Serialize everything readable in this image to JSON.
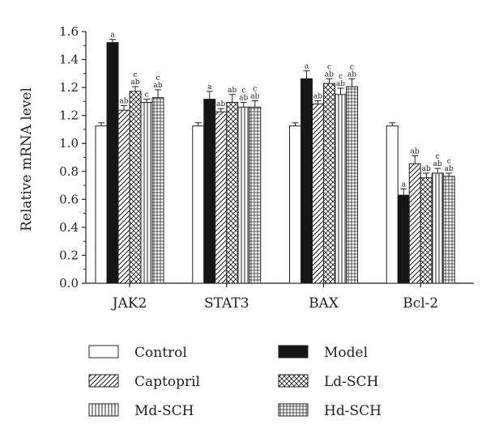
{
  "chart_data": {
    "type": "bar",
    "ylabel": "Relative mRNA level",
    "yticks": [
      "0.0",
      "0.2",
      "0.4",
      "0.6",
      "0.8",
      "1.0",
      "1.2",
      "1.2",
      "1.4",
      "1.6"
    ],
    "categories": [
      "JAK2",
      "STAT3",
      "BAX",
      "Bcl-2"
    ],
    "series": [
      {
        "name": "Control",
        "pattern": "white",
        "values": [
          1.0,
          1.0,
          1.0,
          1.0
        ],
        "errors": [
          0.02,
          0.02,
          0.02,
          0.02
        ],
        "labels": [
          "",
          "",
          "",
          ""
        ]
      },
      {
        "name": "Model",
        "pattern": "black",
        "values": [
          1.53,
          1.17,
          1.3,
          0.56
        ],
        "errors": [
          0.02,
          0.05,
          0.05,
          0.04
        ],
        "labels": [
          "a",
          "a",
          "a",
          "a"
        ]
      },
      {
        "name": "Captopril",
        "pattern": "diagonal",
        "values": [
          1.1,
          1.09,
          1.14,
          0.76
        ],
        "errors": [
          0.03,
          0.02,
          0.02,
          0.05
        ],
        "labels": [
          "ab",
          "ab",
          "ab",
          "ab"
        ]
      },
      {
        "name": "Ld-SCH",
        "pattern": "crosshatch",
        "values": [
          1.22,
          1.15,
          1.27,
          0.67
        ],
        "errors": [
          0.03,
          0.05,
          0.03,
          0.03
        ],
        "labels": [
          "c|ab",
          "ab",
          "c|ab",
          "ab"
        ]
      },
      {
        "name": "Md-SCH",
        "pattern": "vertical",
        "values": [
          1.15,
          1.12,
          1.2,
          0.7
        ],
        "errors": [
          0.02,
          0.03,
          0.04,
          0.03
        ],
        "labels": [
          "c",
          "c|ab",
          "c|ab",
          "c|ab"
        ]
      },
      {
        "name": "Hd-SCH",
        "pattern": "grid",
        "values": [
          1.18,
          1.12,
          1.25,
          0.68
        ],
        "errors": [
          0.05,
          0.04,
          0.05,
          0.02
        ],
        "labels": [
          "c|ab",
          "c|ab",
          "c|ab",
          "c|ab"
        ]
      }
    ],
    "ylim": [
      0,
      1.6
    ],
    "legend_position": "bottom"
  }
}
